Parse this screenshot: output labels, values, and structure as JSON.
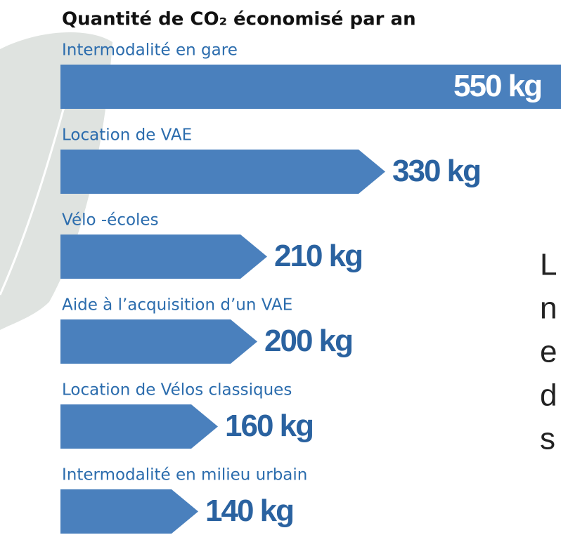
{
  "chart_data": {
    "type": "bar",
    "title": "Quantité de CO₂ économisé par an",
    "categories": [
      "Intermodalité en gare",
      "Location de VAE",
      "Vélo -écoles",
      "Aide à l’acquisition d’un VAE",
      "Location de Vélos classiques",
      "Intermodalité en milieu urbain"
    ],
    "values": [
      550,
      330,
      210,
      200,
      160,
      140
    ],
    "value_labels": [
      "550 kg",
      "330 kg",
      "210 kg",
      "200 kg",
      "160 kg",
      "140 kg"
    ],
    "color": "#4a80bd"
  },
  "side_text": [
    "L",
    "n",
    "e",
    "d",
    "s"
  ]
}
